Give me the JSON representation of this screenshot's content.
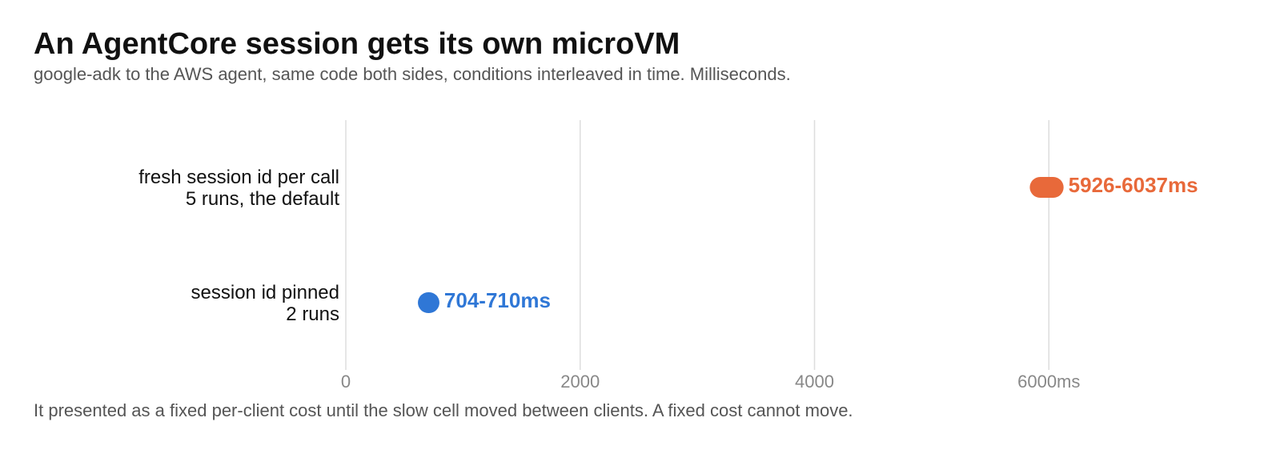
{
  "header": {
    "title": "An AgentCore session gets its own microVM",
    "subtitle": "google-adk to the AWS agent, same code both sides, conditions interleaved in time. Milliseconds."
  },
  "footnote": "It presented as a fixed per-client cost until the slow cell moved between clients. A fixed cost cannot move.",
  "chart_data": {
    "type": "range-dot",
    "title": "An AgentCore session gets its own microVM",
    "subtitle": "google-adk to the AWS agent, same code both sides, conditions interleaved in time. Milliseconds.",
    "xlim": [
      0,
      8000
    ],
    "x_ticks": [
      {
        "value": 0,
        "label": "0"
      },
      {
        "value": 2000,
        "label": "2000"
      },
      {
        "value": 4000,
        "label": "4000"
      },
      {
        "value": 6000,
        "label": "6000ms"
      }
    ],
    "grid": true,
    "rows": [
      {
        "label_line1": "fresh session id per call",
        "label_line2": "5 runs, the default",
        "min": 5926,
        "max": 6037,
        "value_label": "5926-6037ms",
        "color": "#e8693a"
      },
      {
        "label_line1": "session id pinned",
        "label_line2": "2 runs",
        "min": 704,
        "max": 710,
        "value_label": "704-710ms",
        "color": "#2f77d6"
      }
    ]
  }
}
